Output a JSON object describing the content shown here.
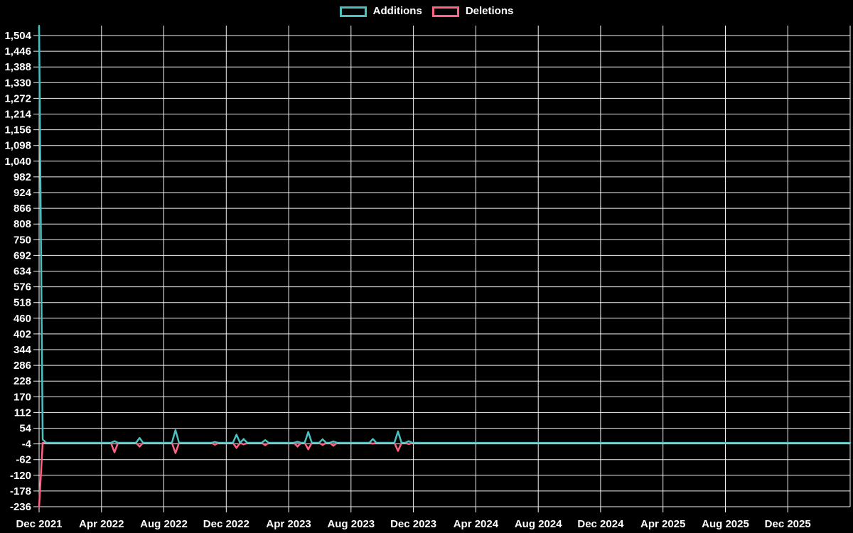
{
  "page": {
    "background_color": "#000000",
    "text_color": "#ffffff",
    "gridline_color": "#ffffff"
  },
  "legend": {
    "items": [
      {
        "label": "Additions",
        "color": "#4bc0c0"
      },
      {
        "label": "Deletions",
        "color": "#ff6384"
      }
    ]
  },
  "chart_data": {
    "type": "line",
    "title": "",
    "xlabel": "",
    "ylabel": "",
    "grid": true,
    "legend_position": "top-center",
    "x_axis": {
      "tick_labels": [
        "Dec 2021",
        "Apr 2022",
        "Aug 2022",
        "Dec 2022",
        "Apr 2023",
        "Aug 2023",
        "Dec 2023",
        "Apr 2024",
        "Aug 2024",
        "Dec 2024",
        "Apr 2025",
        "Aug 2025",
        "Dec 2025"
      ],
      "months_per_gridline": 4,
      "gridline_count_including_unlabeled_right_edge": 14,
      "domain_weeks": 226,
      "domain_note": "weekly data points starting Dec 2021; plot area extends ~4 months past Dec 2025"
    },
    "y_axis": {
      "min": -236,
      "max": 1504,
      "step": 58,
      "tick_values": [
        1504,
        1446,
        1388,
        1330,
        1272,
        1214,
        1156,
        1098,
        1040,
        982,
        924,
        866,
        808,
        750,
        692,
        634,
        576,
        518,
        460,
        402,
        344,
        286,
        228,
        170,
        112,
        54,
        -4,
        -62,
        -120,
        -178,
        -236
      ],
      "tick_labels": [
        "1,504",
        "1,446",
        "1,388",
        "1,330",
        "1,272",
        "1,214",
        "1,156",
        "1,098",
        "1,040",
        "982",
        "924",
        "866",
        "808",
        "750",
        "692",
        "634",
        "576",
        "518",
        "460",
        "402",
        "344",
        "286",
        "228",
        "170",
        "112",
        "54",
        "-4",
        "-62",
        "-120",
        "-178",
        "-236"
      ]
    },
    "series": [
      {
        "name": "Additions",
        "color": "#4bc0c0",
        "baseline_value": 0,
        "first_week": 0,
        "last_week": 226,
        "nonzero_points_week_value": [
          [
            0,
            1540
          ],
          [
            1,
            12
          ],
          [
            21,
            6
          ],
          [
            28,
            18
          ],
          [
            38,
            47
          ],
          [
            49,
            3
          ],
          [
            55,
            30
          ],
          [
            57,
            14
          ],
          [
            63,
            10
          ],
          [
            72,
            4
          ],
          [
            75,
            40
          ],
          [
            79,
            13
          ],
          [
            82,
            5
          ],
          [
            93,
            14
          ],
          [
            100,
            42
          ],
          [
            103,
            6
          ]
        ]
      },
      {
        "name": "Deletions",
        "color": "#ff6384",
        "baseline_value": 0,
        "first_week": 0,
        "last_week": 106,
        "nonzero_points_week_value": [
          [
            0,
            -236
          ],
          [
            21,
            -35
          ],
          [
            28,
            -14
          ],
          [
            38,
            -38
          ],
          [
            49,
            -7
          ],
          [
            55,
            -19
          ],
          [
            57,
            -6
          ],
          [
            63,
            -9
          ],
          [
            72,
            -14
          ],
          [
            75,
            -24
          ],
          [
            79,
            -8
          ],
          [
            82,
            -11
          ],
          [
            93,
            -3
          ],
          [
            100,
            -30
          ],
          [
            103,
            -5
          ]
        ]
      }
    ]
  }
}
